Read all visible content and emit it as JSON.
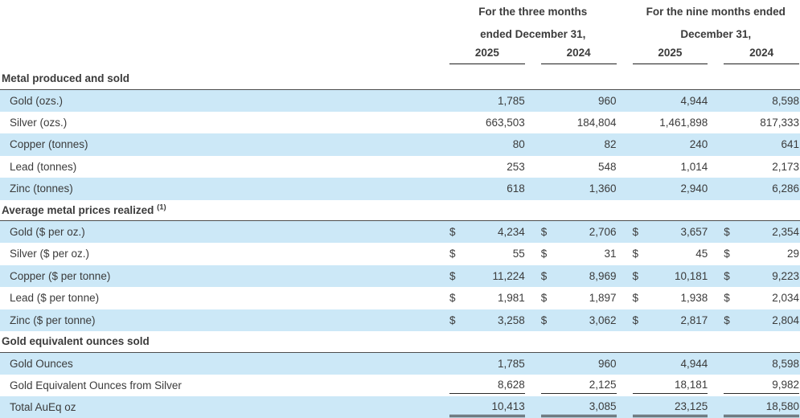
{
  "table": {
    "currency_symbol": "$",
    "colors": {
      "row_shade": "#cce8f7",
      "text": "#3b3b3b",
      "rule": "#2b2b2b"
    },
    "col_groups": [
      {
        "line1": "For the three months",
        "line2": "ended December 31,"
      },
      {
        "line1": "For the nine months ended",
        "line2": "December 31,"
      }
    ],
    "year_columns": [
      "2025",
      "2024",
      "2025",
      "2024"
    ],
    "sections": [
      {
        "title": "Metal produced and sold",
        "sup": "",
        "rows": [
          {
            "label": "Gold (ozs.)",
            "dollar": false,
            "shaded": true,
            "underline": "none",
            "values": [
              "1,785",
              "960",
              "4,944",
              "8,598"
            ]
          },
          {
            "label": "Silver (ozs.)",
            "dollar": false,
            "shaded": false,
            "underline": "none",
            "values": [
              "663,503",
              "184,804",
              "1,461,898",
              "817,333"
            ]
          },
          {
            "label": "Copper (tonnes)",
            "dollar": false,
            "shaded": true,
            "underline": "none",
            "values": [
              "80",
              "82",
              "240",
              "641"
            ]
          },
          {
            "label": "Lead (tonnes)",
            "dollar": false,
            "shaded": false,
            "underline": "none",
            "values": [
              "253",
              "548",
              "1,014",
              "2,173"
            ]
          },
          {
            "label": "Zinc (tonnes)",
            "dollar": false,
            "shaded": true,
            "underline": "none",
            "values": [
              "618",
              "1,360",
              "2,940",
              "6,286"
            ]
          }
        ]
      },
      {
        "title": "Average metal prices realized ",
        "sup": "(1)",
        "rows": [
          {
            "label": "Gold ($ per oz.)",
            "dollar": true,
            "shaded": true,
            "underline": "none",
            "values": [
              "4,234",
              "2,706",
              "3,657",
              "2,354"
            ]
          },
          {
            "label": "Silver ($ per oz.)",
            "dollar": true,
            "shaded": false,
            "underline": "none",
            "values": [
              "55",
              "31",
              "45",
              "29"
            ]
          },
          {
            "label": "Copper ($ per tonne)",
            "dollar": true,
            "shaded": true,
            "underline": "none",
            "values": [
              "11,224",
              "8,969",
              "10,181",
              "9,223"
            ]
          },
          {
            "label": "Lead ($ per tonne)",
            "dollar": true,
            "shaded": false,
            "underline": "none",
            "values": [
              "1,981",
              "1,897",
              "1,938",
              "2,034"
            ]
          },
          {
            "label": "Zinc ($ per tonne)",
            "dollar": true,
            "shaded": true,
            "underline": "none",
            "values": [
              "3,258",
              "3,062",
              "2,817",
              "2,804"
            ]
          }
        ]
      },
      {
        "title": "Gold equivalent ounces sold",
        "sup": "",
        "rows": [
          {
            "label": "Gold Ounces",
            "dollar": false,
            "shaded": true,
            "underline": "none",
            "values": [
              "1,785",
              "960",
              "4,944",
              "8,598"
            ]
          },
          {
            "label": "Gold Equivalent Ounces from Silver",
            "dollar": false,
            "shaded": false,
            "underline": "single",
            "values": [
              "8,628",
              "2,125",
              "18,181",
              "9,982"
            ]
          },
          {
            "label": "Total AuEq oz",
            "dollar": false,
            "shaded": true,
            "underline": "double",
            "values": [
              "10,413",
              "3,085",
              "23,125",
              "18,580"
            ]
          }
        ]
      }
    ]
  }
}
